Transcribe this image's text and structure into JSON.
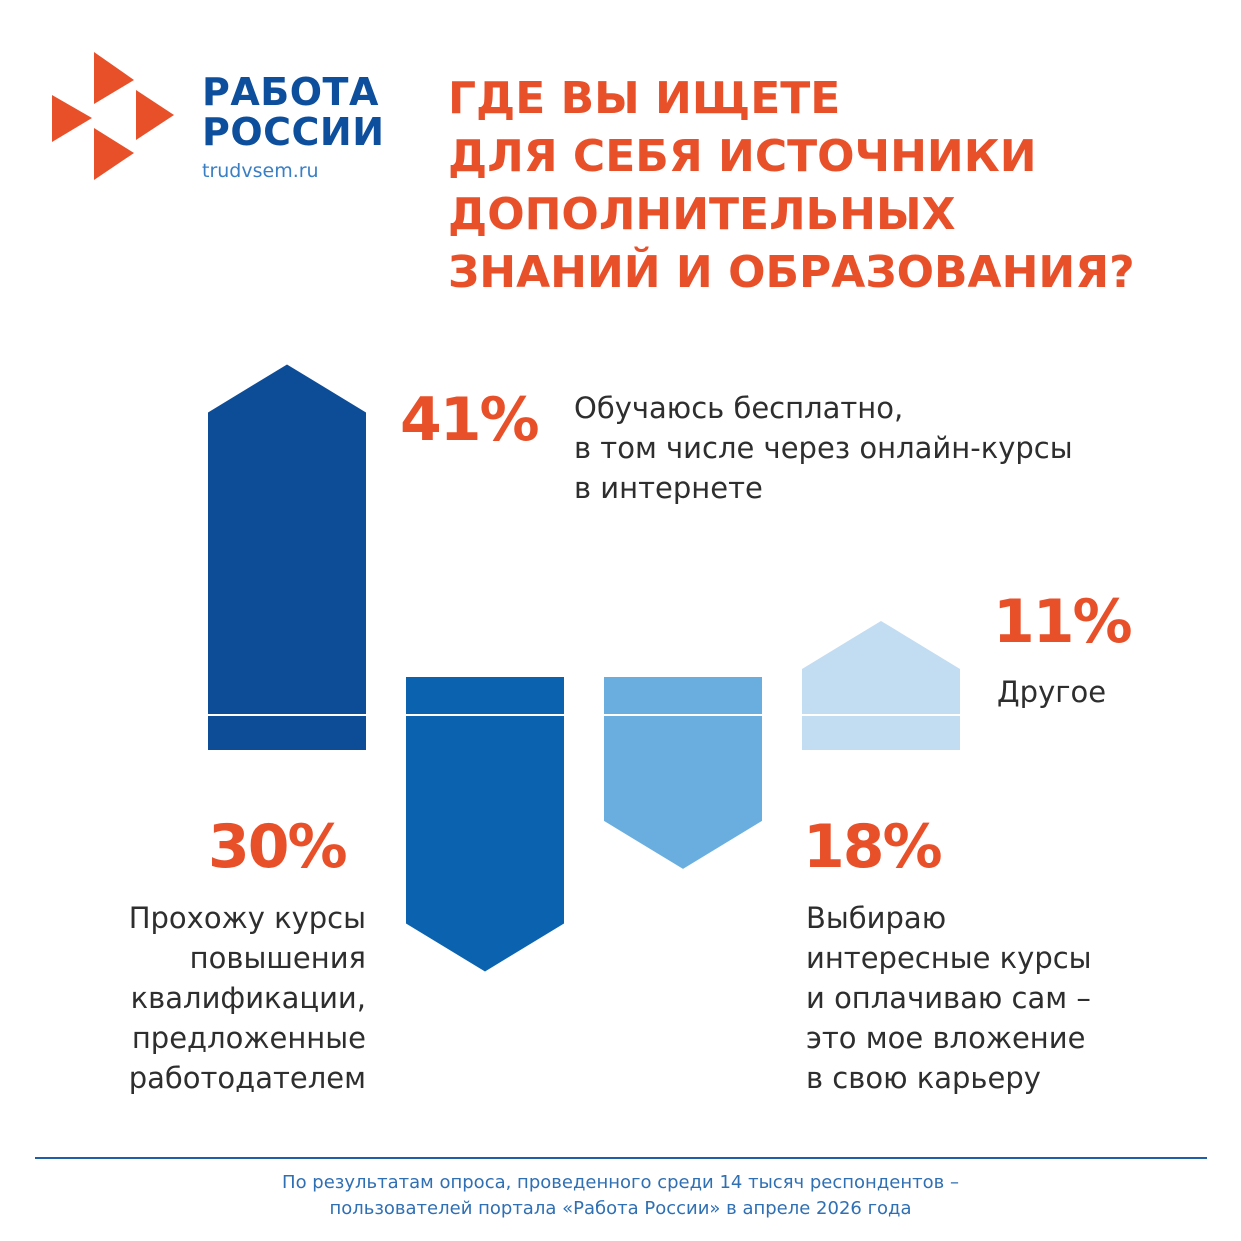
{
  "brand": {
    "name_line1": "РАБОТА",
    "name_line2": "РОССИИ",
    "url": "trudvsem.ru",
    "colors": {
      "logo_orange": "#e8502a",
      "logo_blue": "#0d4f9c"
    },
    "icon": "four-arrows-logo-icon"
  },
  "title": {
    "lines": [
      "ГДЕ ВЫ ИЩЕТЕ",
      "ДЛЯ СЕБЯ ИСТОЧНИКИ",
      "ДОПОЛНИТЕЛЬНЫХ",
      "ЗНАНИЙ И ОБРАЗОВАНИЯ?"
    ]
  },
  "chart_data": {
    "type": "bar",
    "title": "ГДЕ ВЫ ИЩЕТЕ ДЛЯ СЕБЯ ИСТОЧНИКИ ДОПОЛНИТЕЛЬНЫХ ЗНАНИЙ И ОБРАЗОВАНИЯ?",
    "unit": "%",
    "items": [
      {
        "value": 41,
        "value_label": "41%",
        "label_lines": [
          "Обучаюсь бесплатно,",
          "в том числе через онлайн-курсы",
          "в интернете"
        ],
        "direction": "up",
        "color": "#0d4c97"
      },
      {
        "value": 30,
        "value_label": "30%",
        "label_lines": [
          "Прохожу курсы",
          "повышения",
          "квалификации,",
          "предложенные",
          "работодателем"
        ],
        "direction": "down",
        "color": "#0b63b0"
      },
      {
        "value": 18,
        "value_label": "18%",
        "label_lines": [
          "Выбираю",
          "интересные курсы",
          "и оплачиваю сам –",
          "это мое вложение",
          "в свою карьеру"
        ],
        "direction": "down",
        "color": "#6aaee0"
      },
      {
        "value": 11,
        "value_label": "11%",
        "label_lines": [
          "Другое"
        ],
        "direction": "up",
        "color": "#c2dcf2"
      }
    ]
  },
  "footer": {
    "lines": [
      "По результатам опроса, проведенного среди 14 тысяч респондентов –",
      "пользователей портала «Работа России» в апреле 2026 года"
    ]
  }
}
